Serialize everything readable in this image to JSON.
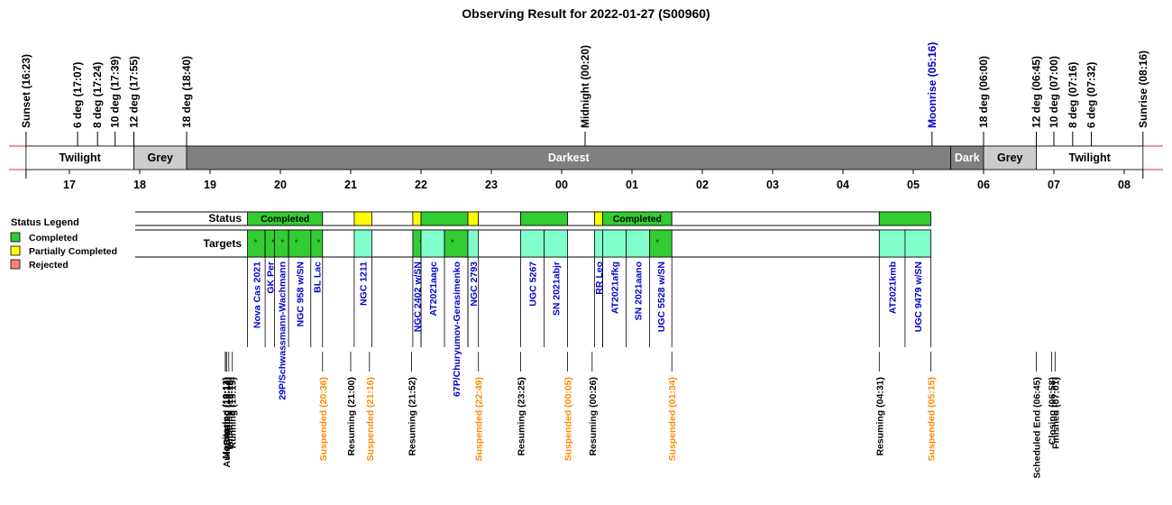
{
  "title": "Observing Result for 2022-01-27 (S00960)",
  "colors": {
    "completed": "#33cc33",
    "partial": "#ffff00",
    "rejected": "#ff8080",
    "target": "#80ffcc",
    "grey": "#cccccc",
    "dark": "#808080",
    "band_line": "#cc3333",
    "target_text": "#0000cc",
    "suspended_text": "#ff8800",
    "moon_text": "#0000cc"
  },
  "legend": {
    "title": "Status Legend",
    "items": [
      {
        "label": "Completed",
        "color": "#33cc33"
      },
      {
        "label": "Partially Completed",
        "color": "#ffff00"
      },
      {
        "label": "Rejected",
        "color": "#ff8080"
      }
    ]
  },
  "row_labels": {
    "status": "Status",
    "targets": "Targets"
  },
  "chart_data": {
    "type": "timeline",
    "time_axis": {
      "start": "16:23",
      "end": "08:16",
      "ticks": [
        "17",
        "18",
        "19",
        "20",
        "21",
        "22",
        "23",
        "00",
        "01",
        "02",
        "03",
        "04",
        "05",
        "06",
        "07",
        "08"
      ]
    },
    "sun_events": [
      {
        "label": "Sunset (16:23)",
        "time": "16:23"
      },
      {
        "label": "6 deg (17:07)",
        "time": "17:07"
      },
      {
        "label": "8 deg (17:24)",
        "time": "17:24"
      },
      {
        "label": "10 deg (17:39)",
        "time": "17:39"
      },
      {
        "label": "12 deg (17:55)",
        "time": "17:55"
      },
      {
        "label": "18 deg (18:40)",
        "time": "18:40"
      },
      {
        "label": "Midnight (00:20)",
        "time": "00:20"
      },
      {
        "label": "Moonrise (05:16)",
        "time": "05:16",
        "moon": true
      },
      {
        "label": "18 deg (06:00)",
        "time": "06:00"
      },
      {
        "label": "12 deg (06:45)",
        "time": "06:45"
      },
      {
        "label": "10 deg (07:00)",
        "time": "07:00"
      },
      {
        "label": "8 deg (07:16)",
        "time": "07:16"
      },
      {
        "label": "6 deg (07:32)",
        "time": "07:32"
      },
      {
        "label": "Sunrise (08:16)",
        "time": "08:16"
      }
    ],
    "bands": [
      {
        "label": "Twilight",
        "start": "16:23",
        "end": "17:55",
        "kind": "twilight"
      },
      {
        "label": "Grey",
        "start": "17:55",
        "end": "18:40",
        "kind": "grey"
      },
      {
        "label": "Darkest",
        "start": "18:40",
        "end": "05:32",
        "kind": "dark"
      },
      {
        "label": "Dark",
        "start": "05:32",
        "end": "06:00",
        "kind": "dark"
      },
      {
        "label": "Grey",
        "start": "06:00",
        "end": "06:45",
        "kind": "grey"
      },
      {
        "label": "Twilight",
        "start": "06:45",
        "end": "08:16",
        "kind": "twilight"
      }
    ],
    "status_segments": [
      {
        "start": "19:32",
        "end": "20:36",
        "status": "completed",
        "label": "Completed"
      },
      {
        "start": "20:36",
        "end": "21:03",
        "status": "none",
        "label": ""
      },
      {
        "start": "21:03",
        "end": "21:18",
        "status": "partial",
        "label": ""
      },
      {
        "start": "21:18",
        "end": "21:53",
        "status": "none",
        "label": ""
      },
      {
        "start": "21:53",
        "end": "22:00",
        "status": "partial",
        "label": ""
      },
      {
        "start": "22:00",
        "end": "22:40",
        "status": "completed",
        "label": ""
      },
      {
        "start": "22:40",
        "end": "22:49",
        "status": "partial",
        "label": ""
      },
      {
        "start": "22:49",
        "end": "23:25",
        "status": "none",
        "label": ""
      },
      {
        "start": "23:25",
        "end": "00:05",
        "status": "completed",
        "label": ""
      },
      {
        "start": "00:05",
        "end": "00:28",
        "status": "none",
        "label": ""
      },
      {
        "start": "00:28",
        "end": "00:35",
        "status": "partial",
        "label": ""
      },
      {
        "start": "00:35",
        "end": "01:34",
        "status": "completed",
        "label": "Completed"
      },
      {
        "start": "01:34",
        "end": "04:31",
        "status": "none",
        "label": ""
      },
      {
        "start": "04:31",
        "end": "05:15",
        "status": "completed",
        "label": ""
      }
    ],
    "targets": [
      {
        "name": "Nova Cas 2021",
        "start": "19:32",
        "end": "19:47",
        "status": "completed",
        "mark": true
      },
      {
        "name": "GK Per",
        "start": "19:47",
        "end": "19:55",
        "status": "completed",
        "mark": true
      },
      {
        "name": "29P/Schwassmann-Wachmann",
        "start": "19:55",
        "end": "20:07",
        "status": "completed",
        "mark": true
      },
      {
        "name": "NGC 958 w/SN",
        "start": "20:07",
        "end": "20:26",
        "status": "completed",
        "mark": true
      },
      {
        "name": "BL Lac",
        "start": "20:26",
        "end": "20:36",
        "status": "completed",
        "mark": true
      },
      {
        "name": "NGC 1211",
        "start": "21:03",
        "end": "21:18",
        "status": "target",
        "mark": false
      },
      {
        "name": "NGC 2402 w/SN",
        "start": "21:53",
        "end": "22:00",
        "status": "completed",
        "mark": true
      },
      {
        "name": "AT2021aagc",
        "start": "22:00",
        "end": "22:20",
        "status": "target",
        "mark": false
      },
      {
        "name": "67P/Churyumov-Gerasimenko",
        "start": "22:20",
        "end": "22:40",
        "status": "completed",
        "mark": true
      },
      {
        "name": "NGC 2793",
        "start": "22:40",
        "end": "22:49",
        "status": "target",
        "mark": false
      },
      {
        "name": "UGC 5267",
        "start": "23:25",
        "end": "23:45",
        "status": "target",
        "mark": false
      },
      {
        "name": "SN 2021abjr",
        "start": "23:45",
        "end": "00:05",
        "status": "target",
        "mark": false
      },
      {
        "name": "RR Leo",
        "start": "00:28",
        "end": "00:35",
        "status": "target",
        "mark": false
      },
      {
        "name": "AT2021afkg",
        "start": "00:35",
        "end": "00:55",
        "status": "target",
        "mark": false
      },
      {
        "name": "SN 2021aano",
        "start": "00:55",
        "end": "01:15",
        "status": "target",
        "mark": false
      },
      {
        "name": "UGC 5528 w/SN",
        "start": "01:15",
        "end": "01:34",
        "status": "completed",
        "mark": true
      },
      {
        "name": "AT2021kmb",
        "start": "04:31",
        "end": "04:53",
        "status": "target",
        "mark": false
      },
      {
        "name": "UGC 9479 w/SN",
        "start": "04:53",
        "end": "05:15",
        "status": "target",
        "mark": false
      }
    ],
    "events": [
      {
        "label": "Monitoring (19:13)",
        "time": "19:13"
      },
      {
        "label": "AutoStarting (19:14)",
        "time": "19:14"
      },
      {
        "label": "Created (19:14)",
        "time": "19:14"
      },
      {
        "label": "Initiating (19:16)",
        "time": "19:16"
      },
      {
        "label": "Running (19:19)",
        "time": "19:19"
      },
      {
        "label": "Suspended (20:36)",
        "time": "20:36",
        "kind": "suspended"
      },
      {
        "label": "Resuming (21:00)",
        "time": "21:00"
      },
      {
        "label": "Suspended (21:16)",
        "time": "21:16",
        "kind": "suspended"
      },
      {
        "label": "Resuming (21:52)",
        "time": "21:52"
      },
      {
        "label": "Suspended (22:49)",
        "time": "22:49",
        "kind": "suspended"
      },
      {
        "label": "Resuming (23:25)",
        "time": "23:25"
      },
      {
        "label": "Suspended (00:05)",
        "time": "00:05",
        "kind": "suspended"
      },
      {
        "label": "Resuming (00:26)",
        "time": "00:26"
      },
      {
        "label": "Suspended (01:34)",
        "time": "01:34",
        "kind": "suspended"
      },
      {
        "label": "Resuming (04:31)",
        "time": "04:31"
      },
      {
        "label": "Suspended (05:15)",
        "time": "05:15",
        "kind": "suspended"
      },
      {
        "label": "Scheduled End (06:45)",
        "time": "06:45"
      },
      {
        "label": "Closing (06:58)",
        "time": "06:58"
      },
      {
        "label": "Finished (07:01)",
        "time": "07:01"
      }
    ]
  }
}
